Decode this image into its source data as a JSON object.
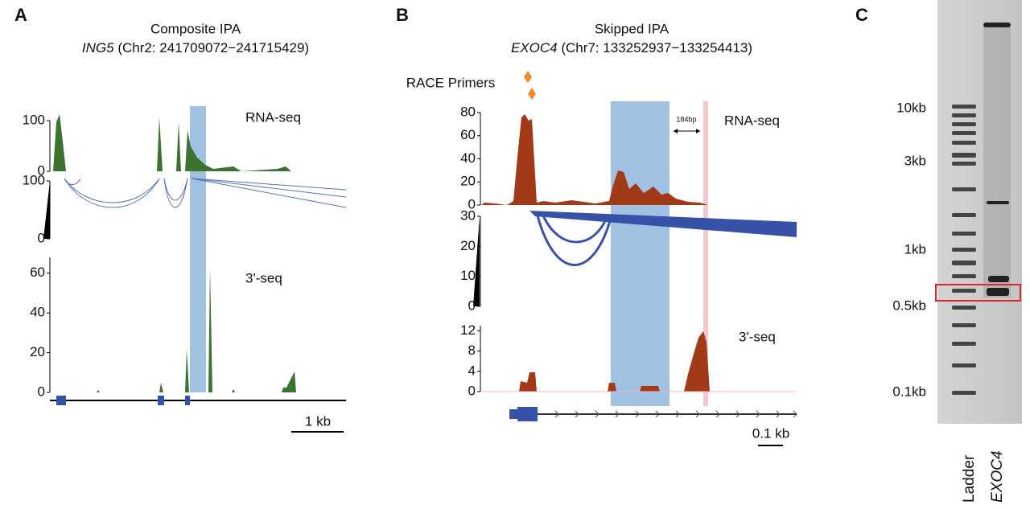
{
  "panels": [
    {
      "label": "A",
      "title": "Composite IPA",
      "gene": "ING5",
      "locus": "(Chr2: 241709072−241715429)",
      "tracks": [
        {
          "name": "RNA-seq",
          "ylim": [
            0,
            100
          ],
          "yticks": [
            0,
            100
          ]
        },
        {
          "ylim": [
            0,
            100
          ],
          "yticks": [
            0,
            100
          ]
        },
        {
          "name": "3'-seq",
          "ylim": [
            0,
            68
          ],
          "yticks": [
            0,
            20,
            40,
            60
          ]
        }
      ],
      "scale_bar": "1 kb"
    },
    {
      "label": "B",
      "title": "Skipped IPA",
      "gene": "EXOC4",
      "locus": "(Chr7: 133252937−133254413)",
      "primers_label": "RACE Primers",
      "distance": "184bp",
      "tracks": [
        {
          "name": "RNA-seq",
          "ylim": [
            0,
            80
          ],
          "yticks": [
            0,
            20,
            40,
            60,
            80
          ]
        },
        {
          "ylim": [
            0,
            30
          ],
          "yticks": [
            0,
            10,
            20,
            30
          ]
        },
        {
          "name": "3'-seq",
          "ylim": [
            0,
            13
          ],
          "yticks": [
            0,
            4,
            8,
            12
          ]
        }
      ],
      "scale_bar": "0.1 kb"
    },
    {
      "label": "C",
      "markers": [
        "10kb",
        "3kb",
        "1kb",
        "0.5kb",
        "0.1kb"
      ],
      "lanes": [
        "Ladder",
        "EXOC4"
      ]
    }
  ]
}
